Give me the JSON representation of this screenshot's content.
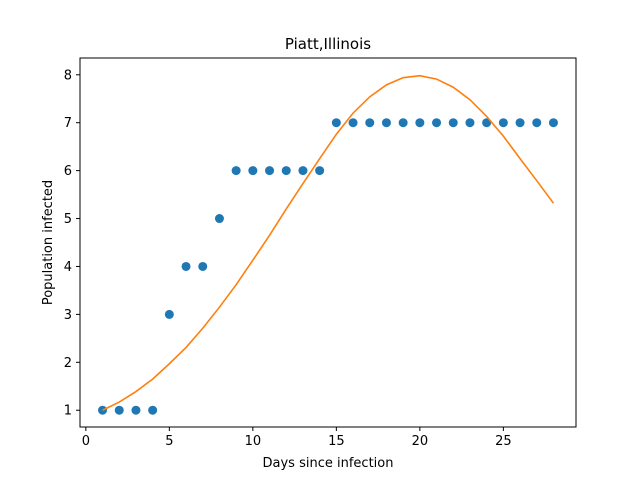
{
  "chart_data": {
    "type": "scatter",
    "title": "Piatt,Illinois",
    "xlabel": "Days since infection",
    "ylabel": "Population infected",
    "xlim": [
      -0.35,
      29.35
    ],
    "ylim": [
      0.65,
      8.35
    ],
    "xticks": [
      0,
      5,
      10,
      15,
      20,
      25
    ],
    "yticks": [
      1,
      2,
      3,
      4,
      5,
      6,
      7,
      8
    ],
    "grid": false,
    "series": [
      {
        "kind": "scatter",
        "color": "#1f77b4",
        "x": [
          1,
          2,
          3,
          4,
          5,
          6,
          7,
          8,
          9,
          10,
          11,
          12,
          13,
          14,
          15,
          16,
          17,
          18,
          19,
          20,
          21,
          22,
          23,
          24,
          25,
          26,
          27,
          28
        ],
        "y": [
          1,
          1,
          1,
          1,
          3,
          4,
          4,
          5,
          6,
          6,
          6,
          6,
          6,
          6,
          7,
          7,
          7,
          7,
          7,
          7,
          7,
          7,
          7,
          7,
          7,
          7,
          7,
          7
        ]
      },
      {
        "kind": "line",
        "color": "#ff7f0e",
        "x": [
          1,
          2,
          3,
          4,
          5,
          6,
          7,
          8,
          9,
          10,
          11,
          12,
          13,
          14,
          15,
          16,
          17,
          18,
          19,
          20,
          21,
          22,
          23,
          24,
          25,
          26,
          27,
          28
        ],
        "y": [
          1.0,
          1.17,
          1.39,
          1.65,
          1.97,
          2.31,
          2.71,
          3.15,
          3.62,
          4.13,
          4.65,
          5.2,
          5.73,
          6.25,
          6.76,
          7.2,
          7.54,
          7.79,
          7.94,
          7.98,
          7.91,
          7.74,
          7.48,
          7.13,
          6.72,
          6.25,
          5.79,
          5.32
        ]
      }
    ]
  }
}
